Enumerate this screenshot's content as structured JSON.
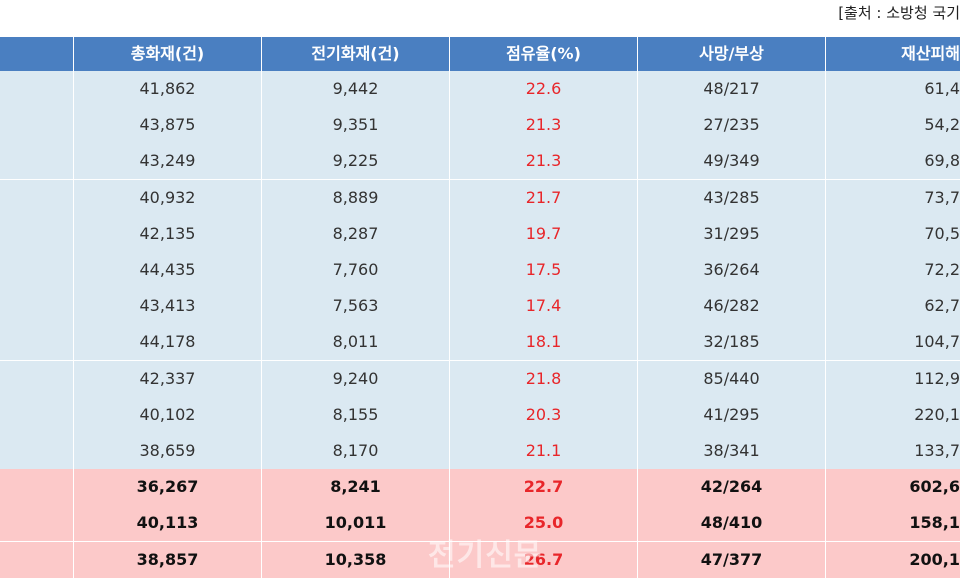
{
  "header": {
    "source": "[출처 : 소방청 국기"
  },
  "table": {
    "columns": [
      "총화재(건)",
      "전기화재(건)",
      "점유율(%)",
      "사망/부상",
      "재산피해"
    ],
    "rows": [
      {
        "cells": [
          "41,862",
          "9,442",
          "22.6",
          "48/217",
          "61,4"
        ],
        "highlight": false
      },
      {
        "cells": [
          "43,875",
          "9,351",
          "21.3",
          "27/235",
          "54,2"
        ],
        "highlight": false
      },
      {
        "cells": [
          "43,249",
          "9,225",
          "21.3",
          "49/349",
          "69,8"
        ],
        "highlight": false
      },
      {
        "cells": [
          "40,932",
          "8,889",
          "21.7",
          "43/285",
          "73,7"
        ],
        "highlight": false
      },
      {
        "cells": [
          "42,135",
          "8,287",
          "19.7",
          "31/295",
          "70,5"
        ],
        "highlight": false
      },
      {
        "cells": [
          "44,435",
          "7,760",
          "17.5",
          "36/264",
          "72,2"
        ],
        "highlight": false
      },
      {
        "cells": [
          "43,413",
          "7,563",
          "17.4",
          "46/282",
          "62,7"
        ],
        "highlight": false
      },
      {
        "cells": [
          "44,178",
          "8,011",
          "18.1",
          "32/185",
          "104,7"
        ],
        "highlight": false
      },
      {
        "cells": [
          "42,337",
          "9,240",
          "21.8",
          "85/440",
          "112,9"
        ],
        "highlight": false
      },
      {
        "cells": [
          "40,102",
          "8,155",
          "20.3",
          "41/295",
          "220,1"
        ],
        "highlight": false
      },
      {
        "cells": [
          "38,659",
          "8,170",
          "21.1",
          "38/341",
          "133,7"
        ],
        "highlight": false
      },
      {
        "cells": [
          "36,267",
          "8,241",
          "22.7",
          "42/264",
          "602,6"
        ],
        "highlight": true
      },
      {
        "cells": [
          "40,113",
          "10,011",
          "25.0",
          "48/410",
          "158,1"
        ],
        "highlight": true
      },
      {
        "cells": [
          "38,857",
          "10,358",
          "26.7",
          "47/377",
          "200,1"
        ],
        "highlight": true
      }
    ]
  },
  "watermark": "전기신문"
}
